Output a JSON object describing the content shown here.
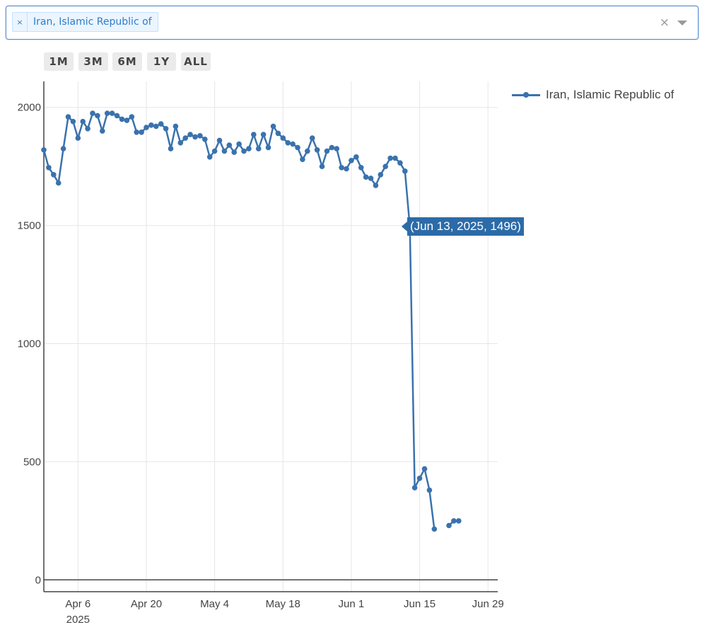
{
  "selector": {
    "chip_remove": "×",
    "chip_label": "Iran, Islamic Republic of",
    "clear": "×"
  },
  "range_buttons": [
    "1M",
    "3M",
    "6M",
    "1Y",
    "ALL"
  ],
  "colors": {
    "line": "#3a72ad",
    "tooltip": "#2c6ba8",
    "grid": "#e6e6e6",
    "axis": "#444444"
  },
  "tooltip": {
    "text": "(Jun 13, 2025, 1496)"
  },
  "chart_data": {
    "type": "line",
    "legend_position": "top-right (outside plot)",
    "grid": true,
    "xlim": [
      "2025-03-30",
      "2025-07-01"
    ],
    "ylim": [
      -50,
      2110
    ],
    "x_ticks": [
      {
        "date": "2025-04-06",
        "label": "Apr 6",
        "sublabel": "2025"
      },
      {
        "date": "2025-04-20",
        "label": "Apr 20"
      },
      {
        "date": "2025-05-04",
        "label": "May 4"
      },
      {
        "date": "2025-05-18",
        "label": "May 18"
      },
      {
        "date": "2025-06-01",
        "label": "Jun 1"
      },
      {
        "date": "2025-06-15",
        "label": "Jun 15"
      },
      {
        "date": "2025-06-29",
        "label": "Jun 29"
      }
    ],
    "y_ticks": [
      0,
      500,
      1000,
      1500,
      2000
    ],
    "series": [
      {
        "name": "Iran, Islamic Republic of",
        "points": [
          [
            "2025-03-30",
            1820
          ],
          [
            "2025-03-31",
            1745
          ],
          [
            "2025-04-01",
            1715
          ],
          [
            "2025-04-02",
            1680
          ],
          [
            "2025-04-03",
            1825
          ],
          [
            "2025-04-04",
            1960
          ],
          [
            "2025-04-05",
            1940
          ],
          [
            "2025-04-06",
            1870
          ],
          [
            "2025-04-07",
            1940
          ],
          [
            "2025-04-08",
            1910
          ],
          [
            "2025-04-09",
            1975
          ],
          [
            "2025-04-10",
            1965
          ],
          [
            "2025-04-11",
            1900
          ],
          [
            "2025-04-12",
            1975
          ],
          [
            "2025-04-13",
            1975
          ],
          [
            "2025-04-14",
            1965
          ],
          [
            "2025-04-15",
            1950
          ],
          [
            "2025-04-16",
            1945
          ],
          [
            "2025-04-17",
            1960
          ],
          [
            "2025-04-18",
            1895
          ],
          [
            "2025-04-19",
            1895
          ],
          [
            "2025-04-20",
            1915
          ],
          [
            "2025-04-21",
            1925
          ],
          [
            "2025-04-22",
            1920
          ],
          [
            "2025-04-23",
            1930
          ],
          [
            "2025-04-24",
            1910
          ],
          [
            "2025-04-25",
            1825
          ],
          [
            "2025-04-26",
            1920
          ],
          [
            "2025-04-27",
            1850
          ],
          [
            "2025-04-28",
            1870
          ],
          [
            "2025-04-29",
            1885
          ],
          [
            "2025-04-30",
            1875
          ],
          [
            "2025-05-01",
            1880
          ],
          [
            "2025-05-02",
            1865
          ],
          [
            "2025-05-03",
            1790
          ],
          [
            "2025-05-04",
            1815
          ],
          [
            "2025-05-05",
            1860
          ],
          [
            "2025-05-06",
            1815
          ],
          [
            "2025-05-07",
            1840
          ],
          [
            "2025-05-08",
            1810
          ],
          [
            "2025-05-09",
            1845
          ],
          [
            "2025-05-10",
            1815
          ],
          [
            "2025-05-11",
            1825
          ],
          [
            "2025-05-12",
            1885
          ],
          [
            "2025-05-13",
            1825
          ],
          [
            "2025-05-14",
            1885
          ],
          [
            "2025-05-15",
            1830
          ],
          [
            "2025-05-16",
            1920
          ],
          [
            "2025-05-17",
            1890
          ],
          [
            "2025-05-18",
            1870
          ],
          [
            "2025-05-19",
            1850
          ],
          [
            "2025-05-20",
            1845
          ],
          [
            "2025-05-21",
            1830
          ],
          [
            "2025-05-22",
            1780
          ],
          [
            "2025-05-23",
            1815
          ],
          [
            "2025-05-24",
            1870
          ],
          [
            "2025-05-25",
            1820
          ],
          [
            "2025-05-26",
            1750
          ],
          [
            "2025-05-27",
            1815
          ],
          [
            "2025-05-28",
            1830
          ],
          [
            "2025-05-29",
            1825
          ],
          [
            "2025-05-30",
            1745
          ],
          [
            "2025-05-31",
            1740
          ],
          [
            "2025-06-01",
            1775
          ],
          [
            "2025-06-02",
            1790
          ],
          [
            "2025-06-03",
            1745
          ],
          [
            "2025-06-04",
            1705
          ],
          [
            "2025-06-05",
            1700
          ],
          [
            "2025-06-06",
            1670
          ],
          [
            "2025-06-07",
            1715
          ],
          [
            "2025-06-08",
            1750
          ],
          [
            "2025-06-09",
            1785
          ],
          [
            "2025-06-10",
            1785
          ],
          [
            "2025-06-11",
            1765
          ],
          [
            "2025-06-12",
            1730
          ],
          [
            "2025-06-13",
            1496
          ],
          [
            "2025-06-14",
            390
          ],
          [
            "2025-06-15",
            430
          ],
          [
            "2025-06-16",
            470
          ],
          [
            "2025-06-17",
            380
          ],
          [
            "2025-06-18",
            215
          ],
          [
            "2025-06-19",
            null
          ],
          [
            "2025-06-20",
            null
          ],
          [
            "2025-06-21",
            230
          ],
          [
            "2025-06-22",
            250
          ],
          [
            "2025-06-23",
            250
          ]
        ]
      }
    ]
  }
}
